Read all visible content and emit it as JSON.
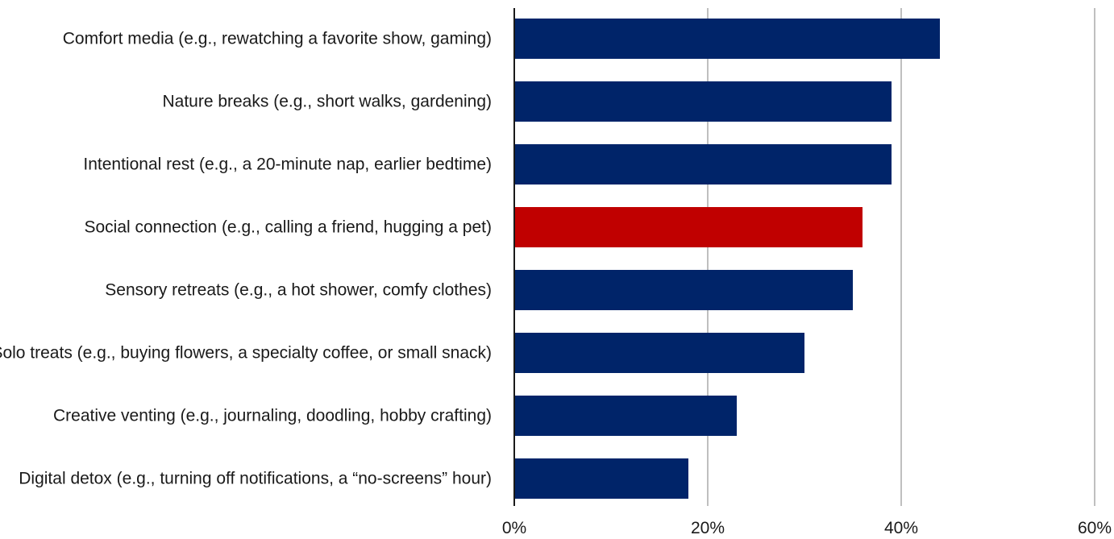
{
  "chart_data": {
    "type": "bar",
    "orientation": "horizontal",
    "categories": [
      "Comfort media (e.g., rewatching a favorite show, gaming)",
      "Nature breaks (e.g., short walks, gardening)",
      "Intentional rest (e.g., a 20-minute nap, earlier bedtime)",
      "Social connection (e.g., calling a friend, hugging a pet)",
      "Sensory retreats (e.g., a hot shower, comfy clothes)",
      "Solo treats (e.g., buying flowers, a specialty coffee, or small snack)",
      "Creative venting (e.g., journaling, doodling, hobby crafting)",
      "Digital detox (e.g., turning off notifications, a “no-screens” hour)"
    ],
    "values": [
      44,
      39,
      39,
      36,
      35,
      30,
      23,
      18
    ],
    "highlight_index": 3,
    "xlim": [
      0,
      60
    ],
    "x_ticks": [
      0,
      20,
      40,
      60
    ],
    "x_tick_labels": [
      "0%",
      "20%",
      "40%",
      "60%"
    ],
    "grid": "vertical",
    "colors": {
      "bar": "#002469",
      "highlight": "#c00000"
    },
    "title": "",
    "xlabel": "",
    "ylabel": ""
  }
}
